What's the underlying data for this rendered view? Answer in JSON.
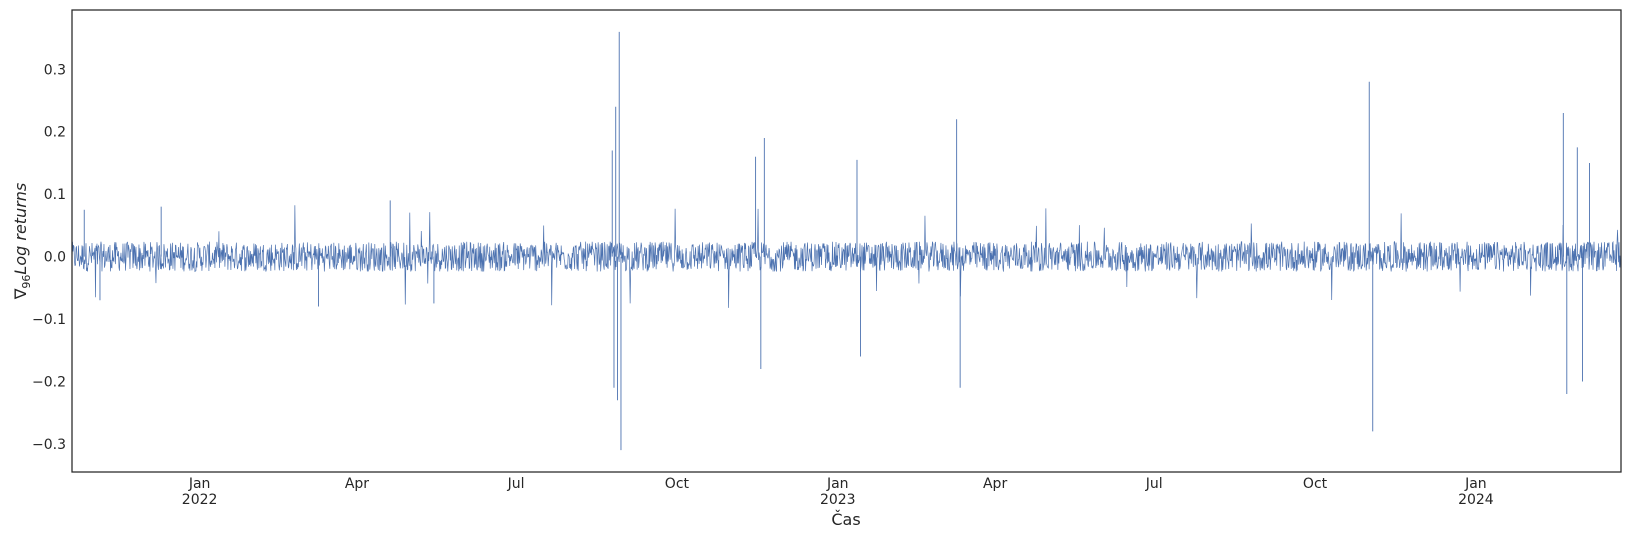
{
  "chart_data": {
    "type": "line",
    "title": "",
    "xlabel": "Čas",
    "ylabel": "∇96Log returns",
    "ylabel_parts": {
      "nabla": "∇",
      "sub": "96",
      "text": "Log returns"
    },
    "xlim": [
      "2021-10-20",
      "2024-03-24"
    ],
    "ylim": [
      -0.345,
      0.395
    ],
    "yticks": [
      -0.3,
      -0.2,
      -0.1,
      0.0,
      0.1,
      0.2,
      0.3
    ],
    "ytick_labels": [
      "−0.3",
      "−0.2",
      "−0.1",
      "0.0",
      "0.1",
      "0.2",
      "0.3"
    ],
    "xticks": [
      {
        "date": "2022-01-01",
        "label": "Jan",
        "year": "2022"
      },
      {
        "date": "2022-04-01",
        "label": "Apr",
        "year": ""
      },
      {
        "date": "2022-07-01",
        "label": "Jul",
        "year": ""
      },
      {
        "date": "2022-10-01",
        "label": "Oct",
        "year": ""
      },
      {
        "date": "2023-01-01",
        "label": "Jan",
        "year": "2023"
      },
      {
        "date": "2023-04-01",
        "label": "Apr",
        "year": ""
      },
      {
        "date": "2023-07-01",
        "label": "Jul",
        "year": ""
      },
      {
        "date": "2023-10-01",
        "label": "Oct",
        "year": ""
      },
      {
        "date": "2024-01-01",
        "label": "Jan",
        "year": "2024"
      }
    ],
    "grid": false,
    "line_color": "#4c72b0",
    "series": [
      {
        "name": "",
        "baseline_amplitude": 0.02,
        "peaks": [
          {
            "date": "2021-10-27",
            "value": 0.075
          },
          {
            "date": "2021-11-05",
            "value": -0.07
          },
          {
            "date": "2021-12-10",
            "value": 0.08
          },
          {
            "date": "2022-03-10",
            "value": -0.08
          },
          {
            "date": "2022-04-20",
            "value": 0.09
          },
          {
            "date": "2022-05-15",
            "value": -0.075
          },
          {
            "date": "2022-08-25",
            "value": 0.17
          },
          {
            "date": "2022-08-26",
            "value": -0.21
          },
          {
            "date": "2022-08-27",
            "value": 0.24
          },
          {
            "date": "2022-08-28",
            "value": -0.23
          },
          {
            "date": "2022-08-29",
            "value": 0.36
          },
          {
            "date": "2022-08-30",
            "value": -0.31
          },
          {
            "date": "2022-11-15",
            "value": 0.16
          },
          {
            "date": "2022-11-18",
            "value": -0.18
          },
          {
            "date": "2022-11-20",
            "value": 0.19
          },
          {
            "date": "2023-01-12",
            "value": 0.155
          },
          {
            "date": "2023-01-14",
            "value": -0.16
          },
          {
            "date": "2023-03-10",
            "value": 0.22
          },
          {
            "date": "2023-03-12",
            "value": -0.21
          },
          {
            "date": "2023-11-01",
            "value": 0.28
          },
          {
            "date": "2023-11-03",
            "value": -0.28
          },
          {
            "date": "2024-02-20",
            "value": 0.23
          },
          {
            "date": "2024-02-22",
            "value": -0.22
          },
          {
            "date": "2024-02-28",
            "value": 0.175
          },
          {
            "date": "2024-03-02",
            "value": -0.2
          },
          {
            "date": "2024-03-06",
            "value": 0.15
          }
        ]
      }
    ]
  }
}
